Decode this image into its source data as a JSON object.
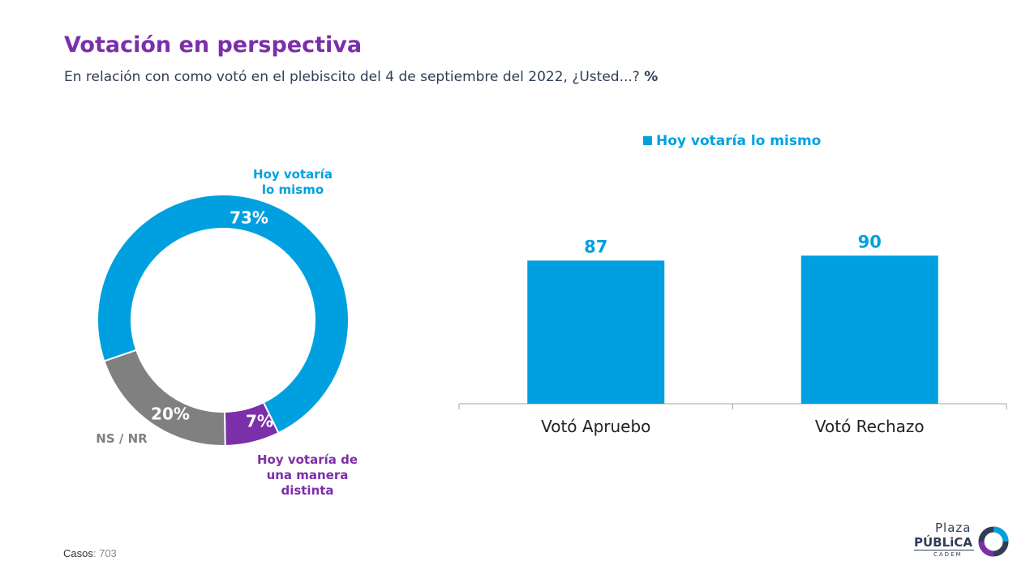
{
  "header": {
    "title": "Votación en perspectiva",
    "subtitle": "En relación con como votó en el plebiscito del 4 de septiembre del 2022, ¿Usted...?",
    "subtitle_unit": "%"
  },
  "colors": {
    "blue": "#00a0e0",
    "purple": "#7b2fa8",
    "gray": "#808080",
    "title": "#7b2fa8",
    "text": "#2f3d55"
  },
  "chart_data": [
    {
      "type": "pie",
      "donut": true,
      "slices": [
        {
          "label": "Hoy votaría lo mismo",
          "label_lines": [
            "Hoy votaría",
            "lo mismo"
          ],
          "value": 73,
          "display": "73%",
          "color": "#00a0e0"
        },
        {
          "label": "Hoy votaría de una manera distinta",
          "label_lines": [
            "Hoy votaría de",
            "una manera",
            "distinta"
          ],
          "value": 7,
          "display": "7%",
          "color": "#7b2fa8"
        },
        {
          "label": "NS / NR",
          "label_lines": [
            "NS / NR"
          ],
          "value": 20,
          "display": "20%",
          "color": "#808080"
        }
      ]
    },
    {
      "type": "bar",
      "categories": [
        "Votó Apruebo",
        "Votó Rechazo"
      ],
      "series": [
        {
          "name": "Hoy votaría lo mismo",
          "values": [
            87,
            90
          ],
          "color": "#00a0e0"
        }
      ],
      "legend": "top",
      "ylim": [
        0,
        100
      ],
      "grid": false
    }
  ],
  "footer": {
    "cases_label": "Casos",
    "cases_value": ": 703"
  },
  "logo": {
    "line1": "Plaza",
    "line2": "PÚBLiCA",
    "line3": "CADEM"
  }
}
